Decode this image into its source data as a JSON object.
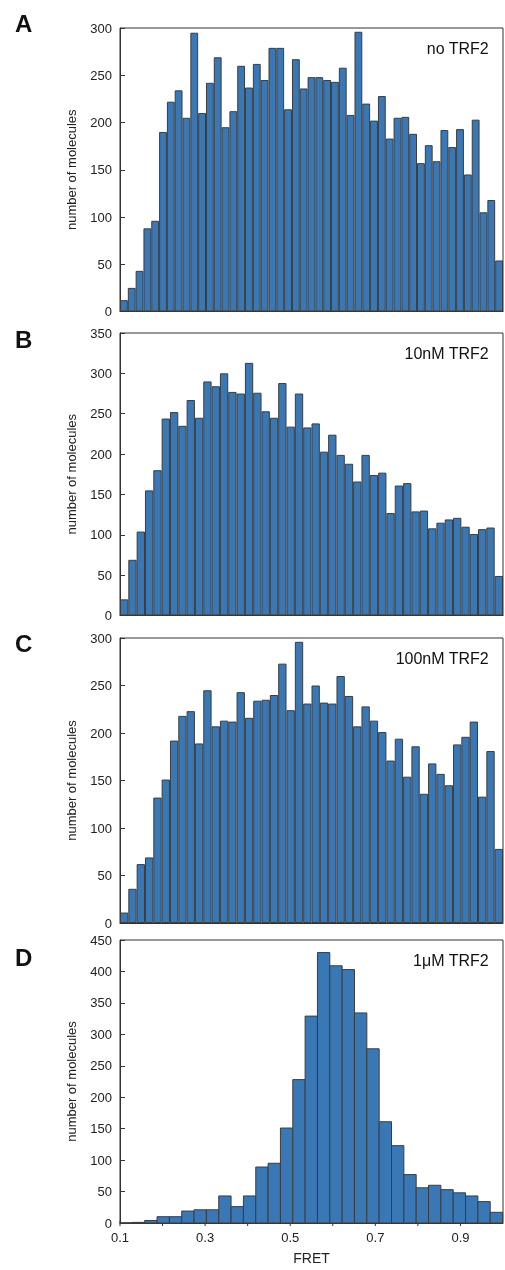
{
  "chart_data": [
    {
      "type": "bar",
      "title": "A",
      "ylabel": "number of molecules",
      "annotations": [
        "no TRF2"
      ],
      "color": "#3a78b5",
      "ylim": [
        0,
        300
      ],
      "yticks": [
        0,
        50,
        100,
        150,
        200,
        250,
        300
      ],
      "tick_labels": "y",
      "categories": [
        null,
        null,
        null,
        null,
        null,
        null,
        null,
        null,
        null,
        null,
        null,
        null,
        null,
        null,
        null,
        null,
        null,
        null,
        null,
        null,
        null,
        null,
        null,
        null,
        null,
        null,
        null,
        null,
        null,
        null,
        null,
        null,
        null,
        null,
        null,
        null,
        null,
        null,
        null,
        null,
        null,
        null,
        null,
        null,
        null,
        null,
        null,
        null,
        null
      ],
      "values": [
        12,
        25,
        43,
        88,
        96,
        190,
        222,
        234,
        205,
        295,
        210,
        242,
        269,
        195,
        212,
        260,
        237,
        262,
        245,
        279,
        279,
        214,
        267,
        236,
        248,
        248,
        245,
        243,
        258,
        208,
        296,
        220,
        202,
        228,
        183,
        205,
        206,
        188,
        157,
        176,
        159,
        192,
        174,
        193,
        145,
        203,
        105,
        118,
        54
      ]
    },
    {
      "type": "bar",
      "title": "B",
      "ylabel": "number of molecules",
      "annotations": [
        "10nM TRF2"
      ],
      "color": "#3a78b5",
      "ylim": [
        0,
        350
      ],
      "yticks": [
        0,
        50,
        100,
        150,
        200,
        250,
        300,
        350
      ],
      "tick_labels": "y",
      "categories": [
        null,
        null,
        null,
        null,
        null,
        null,
        null,
        null,
        null,
        null,
        null,
        null,
        null,
        null,
        null,
        null,
        null,
        null,
        null,
        null,
        null,
        null,
        null,
        null,
        null,
        null,
        null,
        null,
        null,
        null,
        null,
        null,
        null,
        null,
        null,
        null,
        null,
        null,
        null,
        null,
        null,
        null,
        null,
        null,
        null,
        null
      ],
      "values": [
        20,
        69,
        104,
        155,
        180,
        244,
        252,
        235,
        267,
        245,
        290,
        284,
        300,
        277,
        275,
        313,
        276,
        253,
        245,
        288,
        234,
        275,
        233,
        238,
        203,
        224,
        199,
        188,
        166,
        199,
        174,
        177,
        127,
        161,
        164,
        129,
        130,
        108,
        115,
        119,
        121,
        110,
        101,
        107,
        109,
        49
      ]
    },
    {
      "type": "bar",
      "title": "C",
      "ylabel": "number of molecules",
      "annotations": [
        "100nM TRF2"
      ],
      "color": "#3a78b5",
      "ylim": [
        0,
        300
      ],
      "yticks": [
        0,
        50,
        100,
        150,
        200,
        250,
        300
      ],
      "tick_labels": "y",
      "categories": [
        null,
        null,
        null,
        null,
        null,
        null,
        null,
        null,
        null,
        null,
        null,
        null,
        null,
        null,
        null,
        null,
        null,
        null,
        null,
        null,
        null,
        null,
        null,
        null,
        null,
        null,
        null,
        null,
        null,
        null,
        null,
        null,
        null,
        null,
        null,
        null,
        null,
        null,
        null,
        null,
        null,
        null,
        null,
        null,
        null,
        null
      ],
      "values": [
        11,
        36,
        62,
        69,
        132,
        151,
        192,
        218,
        223,
        189,
        245,
        207,
        213,
        212,
        243,
        216,
        234,
        235,
        240,
        273,
        224,
        296,
        231,
        250,
        232,
        231,
        260,
        239,
        207,
        228,
        213,
        201,
        171,
        194,
        154,
        186,
        136,
        168,
        157,
        145,
        188,
        196,
        212,
        133,
        181,
        78
      ]
    },
    {
      "type": "histogram",
      "title": "D",
      "xlabel": "FRET",
      "ylabel": "number of molecules",
      "annotations": [
        "1μM TRF2"
      ],
      "color": "#3a78b5",
      "xlim": [
        0.1,
        1
      ],
      "xticks": [
        0.1,
        {
          "value": 0.2,
          "label": null
        },
        0.3,
        {
          "value": 0.4,
          "label": null
        },
        0.5,
        {
          "value": 0.6,
          "label": null
        },
        0.7,
        {
          "value": 0.8,
          "label": null
        },
        0.9
      ],
      "ylim": [
        0,
        450
      ],
      "yticks": [
        0,
        50,
        100,
        150,
        200,
        250,
        300,
        350,
        400,
        450
      ],
      "bins": [
        0.1,
        0.129,
        0.158,
        0.187,
        0.216,
        0.245,
        0.274,
        0.303,
        0.332,
        0.361,
        0.39,
        0.419,
        0.448,
        0.477,
        0.506,
        0.535,
        0.564,
        0.593,
        0.622,
        0.651,
        0.68,
        0.709,
        0.738,
        0.767,
        0.796,
        0.825,
        0.854,
        0.883,
        0.912,
        0.941,
        0.97,
        0.999
      ],
      "values": [
        0,
        1,
        4,
        10,
        10,
        19,
        21,
        21,
        43,
        26,
        43,
        89,
        95,
        151,
        228,
        329,
        430,
        409,
        403,
        334,
        277,
        161,
        123,
        77,
        56,
        60,
        53,
        48,
        43,
        34,
        17
      ]
    }
  ]
}
